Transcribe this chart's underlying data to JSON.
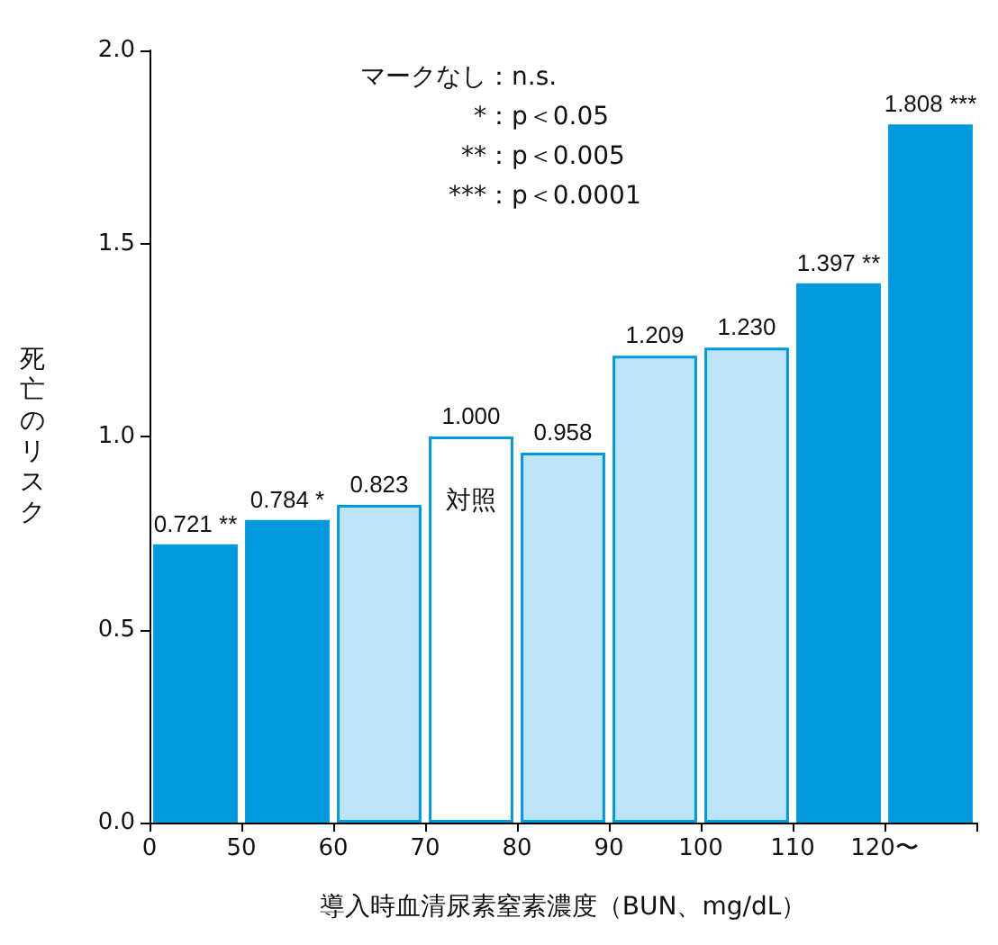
{
  "chart_data": {
    "type": "bar",
    "xlabel": "導入時血清尿素窒素濃度（BUN、mg/dL）",
    "ylabel": "死亡のリスク",
    "categories": [
      null,
      null,
      null,
      null,
      null,
      null,
      null,
      null,
      null
    ],
    "values": [
      0.721,
      0.784,
      0.823,
      1.0,
      0.958,
      1.209,
      1.23,
      1.397,
      1.808
    ],
    "colors": [
      "#0099dd",
      "#0099dd",
      "#bde3f7",
      "#ffffff",
      "#bde3f7",
      "#bde3f7",
      "#bde3f7",
      "#0099dd",
      "#0099dd"
    ],
    "value_labels": [
      "0.721 **",
      "0.784 *",
      "0.823",
      "1.000",
      "0.958",
      "1.209",
      "1.230",
      "1.397 **",
      "1.808 ***"
    ],
    "ylim": [
      0,
      2
    ],
    "yticks": [
      {
        "value": 0,
        "label": "0.0"
      },
      {
        "value": 0.5,
        "label": "0.5"
      },
      {
        "value": 1,
        "label": "1.0"
      },
      {
        "value": 1.5,
        "label": "1.5"
      },
      {
        "value": 2,
        "label": "2.0"
      }
    ],
    "grid": false,
    "annotations": [
      "マークなし：n.s.",
      "*：p＜0.05",
      "**：p＜0.005",
      "***：p＜0.0001",
      "対照",
      "0",
      "50",
      "60",
      "70",
      "80",
      "90",
      "100",
      "110",
      "120〜"
    ]
  }
}
